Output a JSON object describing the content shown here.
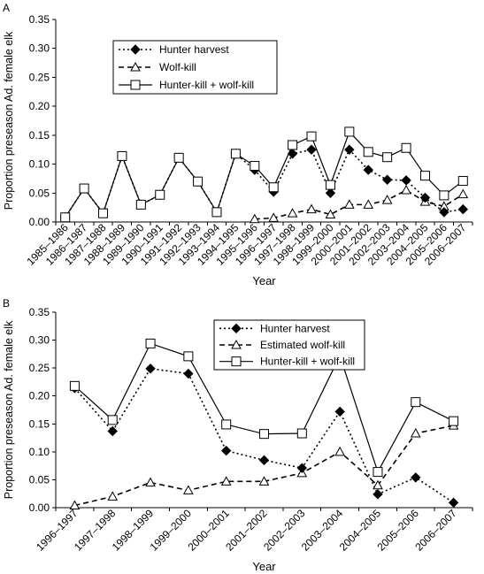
{
  "chart_data": [
    {
      "panel_label": "A",
      "type": "line",
      "xlabel": "Year",
      "ylabel": "Proportion preseason Ad. female elk",
      "ylim": [
        0,
        0.35
      ],
      "yticks": [
        "0.00",
        "0.05",
        "0.10",
        "0.15",
        "0.20",
        "0.25",
        "0.30",
        "0.35"
      ],
      "categories": [
        "1985–1986",
        "1986–1987",
        "1987–1988",
        "1988–1989",
        "1989–1990",
        "1990–1991",
        "1991–1992",
        "1992–1993",
        "1993–1994",
        "1994–1995",
        "1995–1996",
        "1996–1997",
        "1997–1998",
        "1998–1999",
        "1999–2000",
        "2000–2001",
        "2001–2002",
        "2002–2003",
        "2003–2004",
        "2004–2005",
        "2005–2006",
        "2006–2007"
      ],
      "legend_position": "top-left",
      "series": [
        {
          "name": "Hunter harvest",
          "marker": "diamond",
          "line": "dotted",
          "values": [
            0.008,
            0.058,
            0.015,
            0.114,
            0.03,
            0.047,
            0.111,
            0.07,
            0.017,
            0.118,
            0.09,
            0.052,
            0.118,
            0.125,
            0.05,
            0.125,
            0.09,
            0.073,
            0.072,
            0.042,
            0.017,
            0.022
          ]
        },
        {
          "name": "Wolf-kill",
          "marker": "triangle",
          "line": "dashed",
          "values": [
            null,
            null,
            null,
            null,
            null,
            null,
            null,
            null,
            null,
            null,
            0.005,
            0.007,
            0.015,
            0.022,
            0.013,
            0.03,
            0.03,
            0.038,
            0.055,
            0.035,
            0.027,
            0.048
          ]
        },
        {
          "name": "Hunter-kill + wolf-kill",
          "marker": "square",
          "line": "solid",
          "values": [
            0.008,
            0.058,
            0.015,
            0.114,
            0.03,
            0.047,
            0.111,
            0.07,
            0.017,
            0.118,
            0.097,
            0.06,
            0.133,
            0.148,
            0.064,
            0.156,
            0.121,
            0.112,
            0.128,
            0.08,
            0.046,
            0.071
          ]
        }
      ]
    },
    {
      "panel_label": "B",
      "type": "line",
      "xlabel": "Year",
      "ylabel": "Proportion preseason Ad. female elk",
      "ylim": [
        0,
        0.35
      ],
      "yticks": [
        "0.00",
        "0.05",
        "0.10",
        "0.15",
        "0.20",
        "0.25",
        "0.30",
        "0.35"
      ],
      "categories": [
        "1996–1997",
        "1997–1998",
        "1998–1999",
        "1999–2000",
        "2000–2001",
        "2001–2002",
        "2002–2003",
        "2003–2004",
        "2004–2005",
        "2005–2006",
        "2006–2007"
      ],
      "legend_position": "top-right",
      "series": [
        {
          "name": "Hunter harvest",
          "marker": "diamond",
          "line": "dotted",
          "values": [
            0.214,
            0.137,
            0.249,
            0.24,
            0.102,
            0.085,
            0.071,
            0.172,
            0.024,
            0.054,
            0.009
          ]
        },
        {
          "name": "Estimated wolf-kill",
          "marker": "triangle",
          "line": "dashed",
          "values": [
            0.004,
            0.02,
            0.045,
            0.031,
            0.047,
            0.047,
            0.062,
            0.1,
            0.04,
            0.133,
            0.147
          ]
        },
        {
          "name": "Hunter-kill + wolf-kill",
          "marker": "square",
          "line": "solid",
          "values": [
            0.218,
            0.157,
            0.294,
            0.271,
            0.149,
            0.132,
            0.133,
            0.272,
            0.064,
            0.189,
            0.155
          ]
        }
      ]
    }
  ]
}
